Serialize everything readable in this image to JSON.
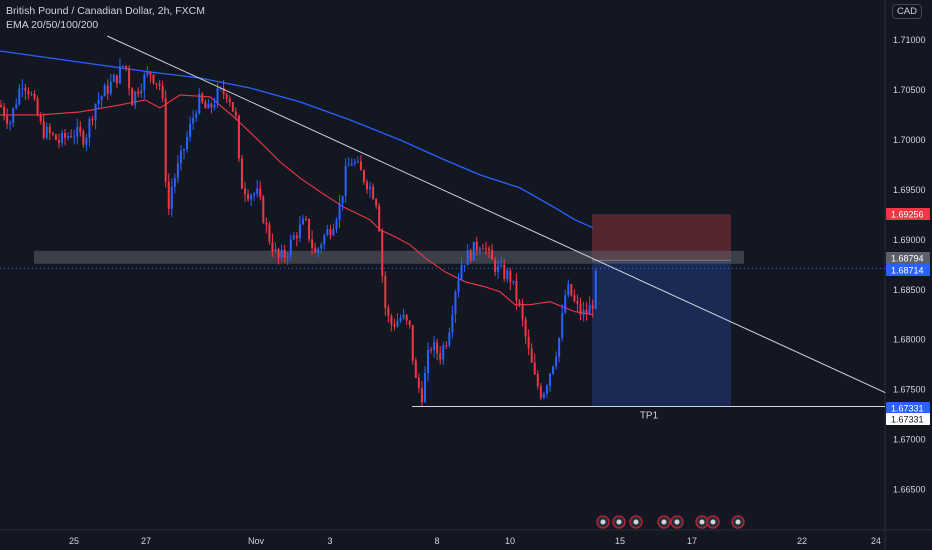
{
  "header": {
    "title": "British Pound / Canadian Dollar, 2h, FXCM",
    "indicator": "EMA 20/50/100/200"
  },
  "currency_button": "CAD",
  "colors": {
    "background": "#131722",
    "up_candle": "#2962ff",
    "down_candle": "#f23645",
    "ema_fast": "#f23645",
    "ema_slow": "#2962ff",
    "trendline": "#d1d4dc",
    "stop_zone": "#6e2c33",
    "target_zone": "#1c2c5b",
    "support_band": "#5d606b"
  },
  "chart_data": {
    "type": "candlestick",
    "y_axis": {
      "range": [
        1.661,
        1.7125
      ],
      "ticks": [
        "1.71000",
        "1.70500",
        "1.70000",
        "1.69500",
        "1.69000",
        "1.68500",
        "1.68000",
        "1.67500",
        "1.67000",
        "1.66500"
      ]
    },
    "x_axis": {
      "ticks": [
        "25",
        "27",
        "Nov",
        "3",
        "8",
        "10",
        "15",
        "17",
        "22",
        "24"
      ]
    },
    "price_labels": [
      {
        "value": "1.69256",
        "style": "red"
      },
      {
        "value": "1.68794",
        "style": "gray"
      },
      {
        "value": "1.68714",
        "style": "blue"
      },
      {
        "value": "1.67331",
        "style": "blue"
      },
      {
        "value": "1.67331",
        "style": "white"
      }
    ],
    "position": {
      "entry": 1.68794,
      "stop": 1.69256,
      "target": 1.67331,
      "target_label": "TP1"
    },
    "support_band": [
      1.6876,
      1.6889
    ],
    "trendline": {
      "start": [
        0.115,
        1.7104
      ],
      "end": [
        0.95,
        1.6747
      ]
    },
    "current_price": 1.68714,
    "ema_fast_path": [
      [
        0,
        1.7025
      ],
      [
        40,
        1.7025
      ],
      [
        80,
        1.7028
      ],
      [
        120,
        1.7035
      ],
      [
        145,
        1.704
      ],
      [
        160,
        1.7032
      ],
      [
        180,
        1.7045
      ],
      [
        210,
        1.7043
      ],
      [
        235,
        1.7022
      ],
      [
        260,
        1.6998
      ],
      [
        280,
        1.6978
      ],
      [
        300,
        1.6962
      ],
      [
        320,
        1.6948
      ],
      [
        345,
        1.6932
      ],
      [
        370,
        1.692
      ],
      [
        380,
        1.691
      ],
      [
        395,
        1.6903
      ],
      [
        410,
        1.6895
      ],
      [
        425,
        1.6882
      ],
      [
        445,
        1.6868
      ],
      [
        465,
        1.6858
      ],
      [
        485,
        1.6853
      ],
      [
        500,
        1.6848
      ],
      [
        515,
        1.6835
      ],
      [
        530,
        1.6835
      ],
      [
        550,
        1.6838
      ],
      [
        575,
        1.6828
      ],
      [
        593,
        1.6825
      ]
    ],
    "ema_slow_path": [
      [
        0,
        1.7089
      ],
      [
        50,
        1.7082
      ],
      [
        100,
        1.7075
      ],
      [
        150,
        1.7068
      ],
      [
        200,
        1.7062
      ],
      [
        250,
        1.7052
      ],
      [
        300,
        1.7038
      ],
      [
        350,
        1.702
      ],
      [
        400,
        1.7
      ],
      [
        440,
        1.6982
      ],
      [
        480,
        1.6965
      ],
      [
        520,
        1.6952
      ],
      [
        555,
        1.6932
      ],
      [
        575,
        1.692
      ],
      [
        593,
        1.6912
      ]
    ],
    "candle_path": [
      [
        0,
        1.7035
      ],
      [
        10,
        1.7018
      ],
      [
        22,
        1.706
      ],
      [
        30,
        1.7048
      ],
      [
        42,
        1.701
      ],
      [
        50,
        1.7005
      ],
      [
        60,
        1.6998
      ],
      [
        72,
        1.7008
      ],
      [
        85,
        1.7002
      ],
      [
        95,
        1.7036
      ],
      [
        108,
        1.7052
      ],
      [
        118,
        1.7065
      ],
      [
        125,
        1.7078
      ],
      [
        132,
        1.704
      ],
      [
        140,
        1.7056
      ],
      [
        150,
        1.7068
      ],
      [
        160,
        1.7055
      ],
      [
        164,
        1.7025
      ],
      [
        167,
        1.6918
      ],
      [
        172,
        1.6955
      ],
      [
        180,
        1.6978
      ],
      [
        190,
        1.7012
      ],
      [
        198,
        1.704
      ],
      [
        208,
        1.7028
      ],
      [
        218,
        1.7046
      ],
      [
        228,
        1.7048
      ],
      [
        236,
        1.702
      ],
      [
        240,
        1.6958
      ],
      [
        248,
        1.6948
      ],
      [
        258,
        1.6945
      ],
      [
        268,
        1.6905
      ],
      [
        278,
        1.688
      ],
      [
        285,
        1.6885
      ],
      [
        295,
        1.6905
      ],
      [
        305,
        1.6918
      ],
      [
        315,
        1.6885
      ],
      [
        322,
        1.69
      ],
      [
        332,
        1.6915
      ],
      [
        340,
        1.6935
      ],
      [
        346,
        1.6968
      ],
      [
        352,
        1.698
      ],
      [
        362,
        1.6965
      ],
      [
        372,
        1.695
      ],
      [
        378,
        1.6935
      ],
      [
        382,
        1.6868
      ],
      [
        386,
        1.6825
      ],
      [
        392,
        1.6815
      ],
      [
        402,
        1.6823
      ],
      [
        410,
        1.681
      ],
      [
        415,
        1.676
      ],
      [
        422,
        1.6745
      ],
      [
        430,
        1.6795
      ],
      [
        440,
        1.6785
      ],
      [
        448,
        1.6805
      ],
      [
        455,
        1.685
      ],
      [
        462,
        1.6878
      ],
      [
        472,
        1.6888
      ],
      [
        482,
        1.69
      ],
      [
        490,
        1.688
      ],
      [
        500,
        1.6868
      ],
      [
        510,
        1.6863
      ],
      [
        520,
        1.683
      ],
      [
        528,
        1.679
      ],
      [
        535,
        1.676
      ],
      [
        542,
        1.6745
      ],
      [
        548,
        1.6762
      ],
      [
        555,
        1.6785
      ],
      [
        560,
        1.6805
      ],
      [
        566,
        1.685
      ],
      [
        570,
        1.6848
      ],
      [
        575,
        1.6835
      ],
      [
        582,
        1.6825
      ],
      [
        588,
        1.6828
      ],
      [
        593,
        1.6838
      ],
      [
        597,
        1.68714
      ]
    ],
    "event_markers": [
      603,
      619,
      636,
      664,
      677,
      702,
      713,
      738
    ],
    "plot_width": 885
  }
}
